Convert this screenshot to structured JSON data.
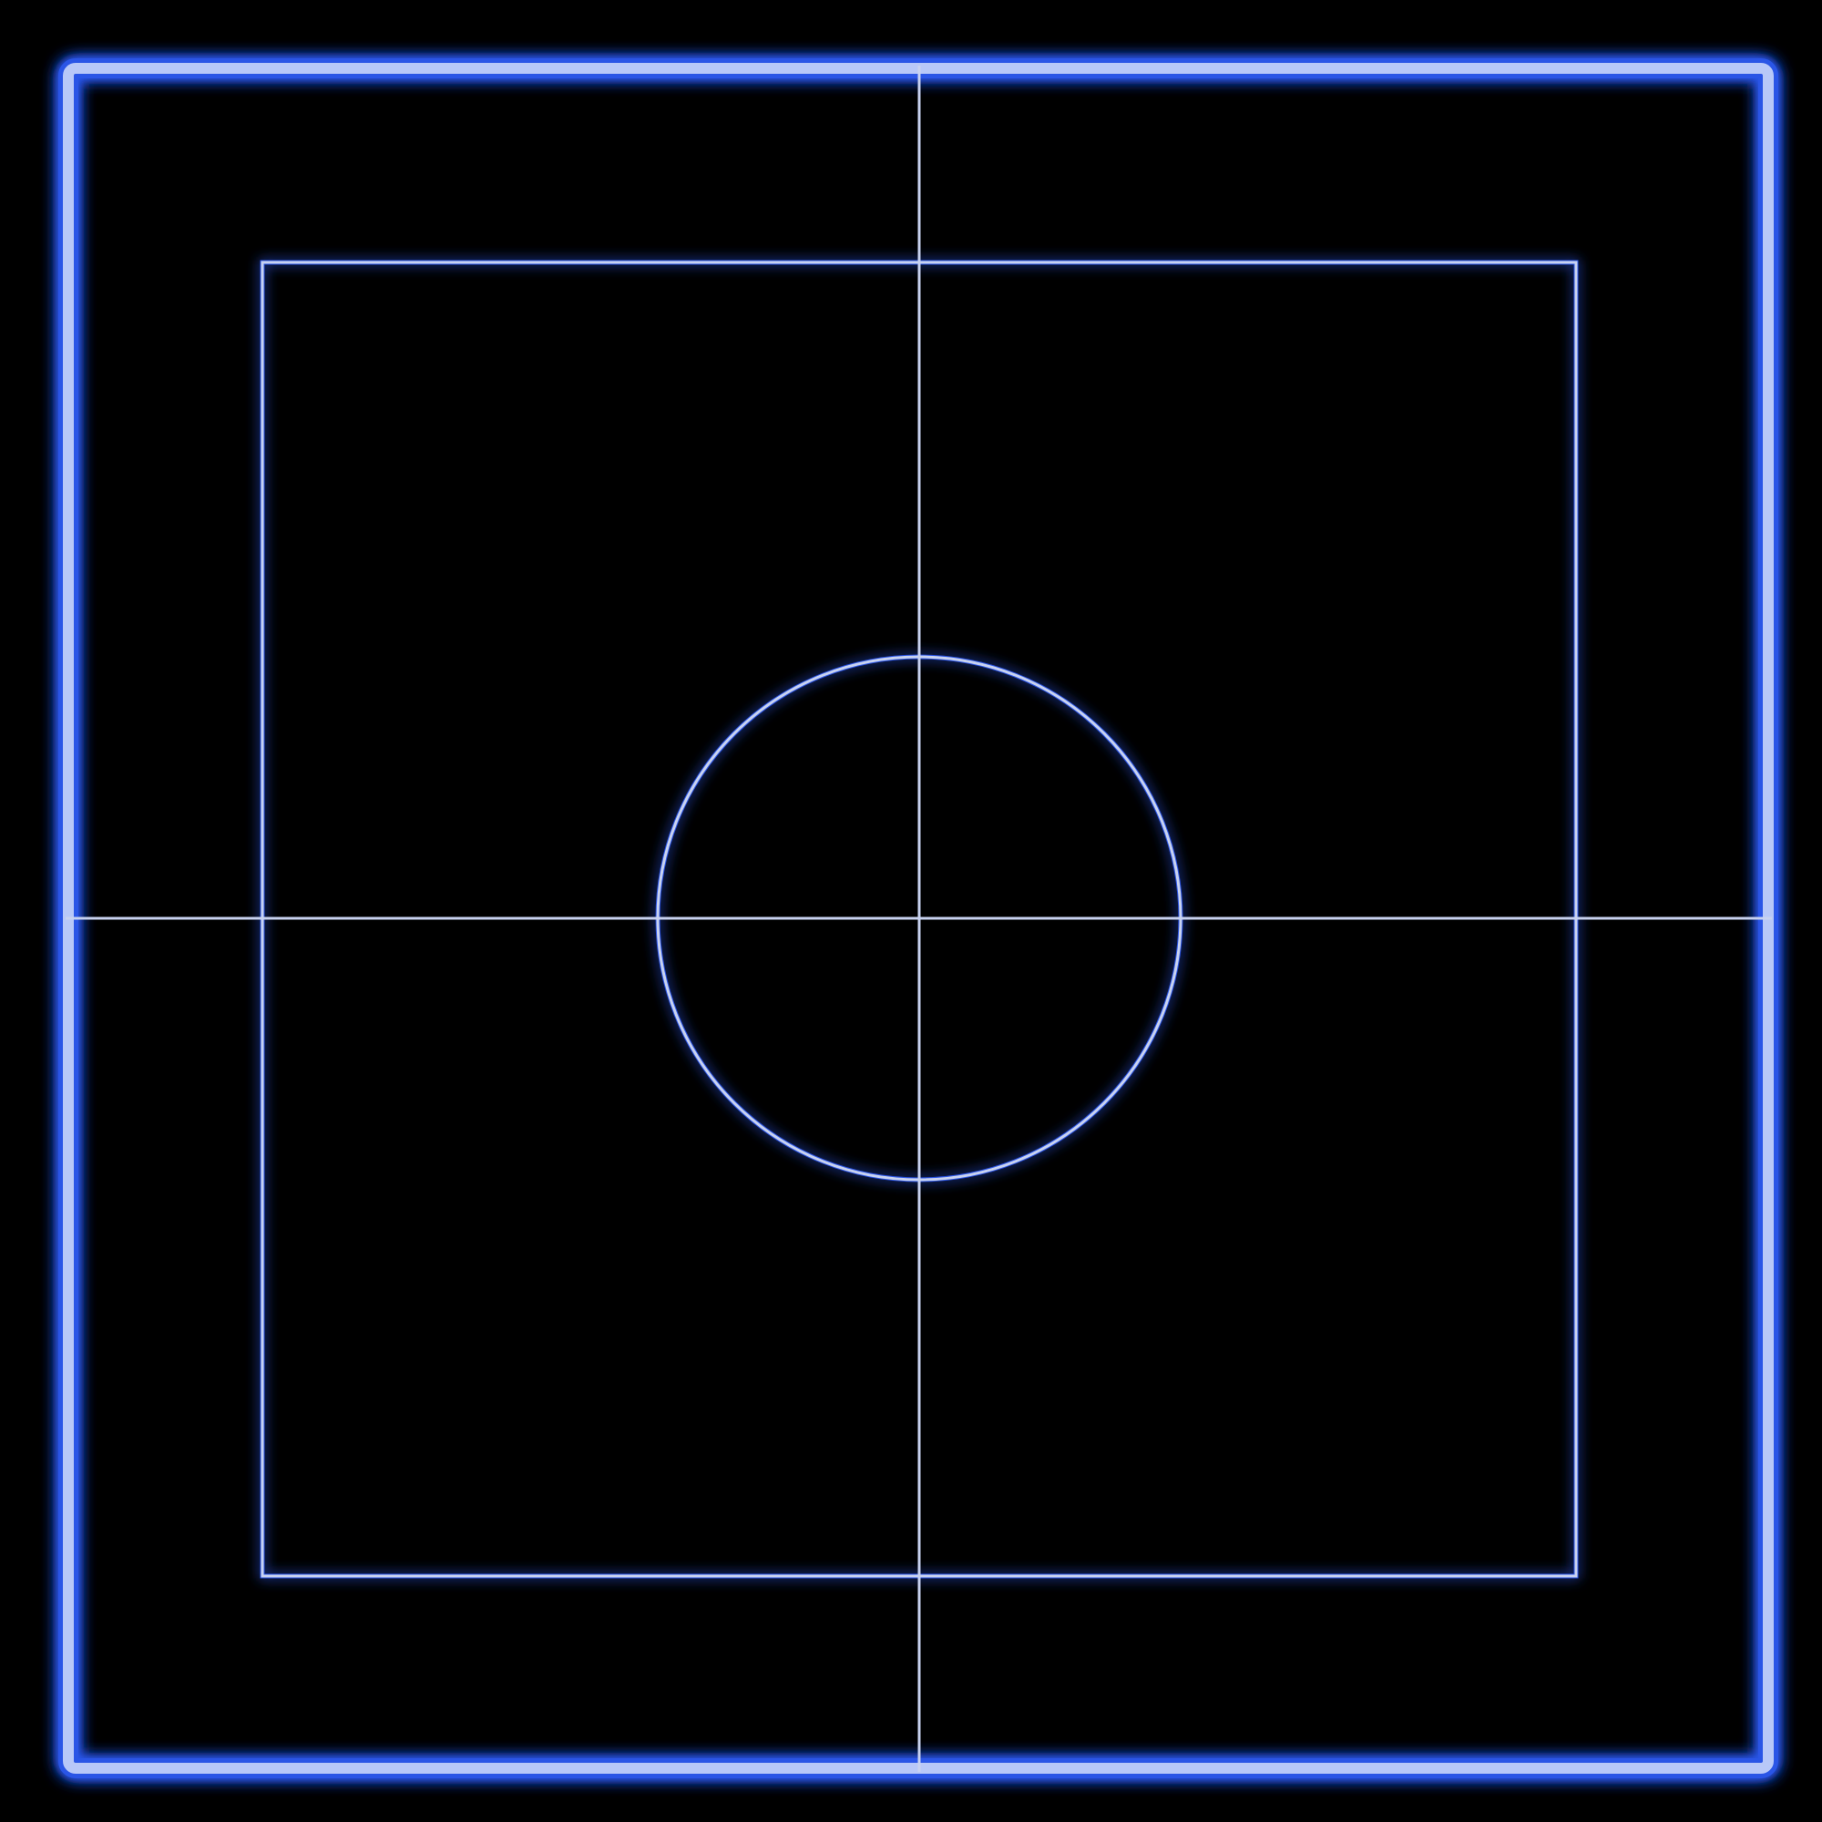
{
  "scene": {
    "background_color": "#000000",
    "glow_color": "#2b55e6",
    "line_color": "#c8d2f0",
    "outer_frame_color": "#b8c8f8",
    "elements": [
      "outer-frame",
      "inner-square",
      "center-circle",
      "vertical-axis-line",
      "horizontal-axis-line"
    ]
  }
}
